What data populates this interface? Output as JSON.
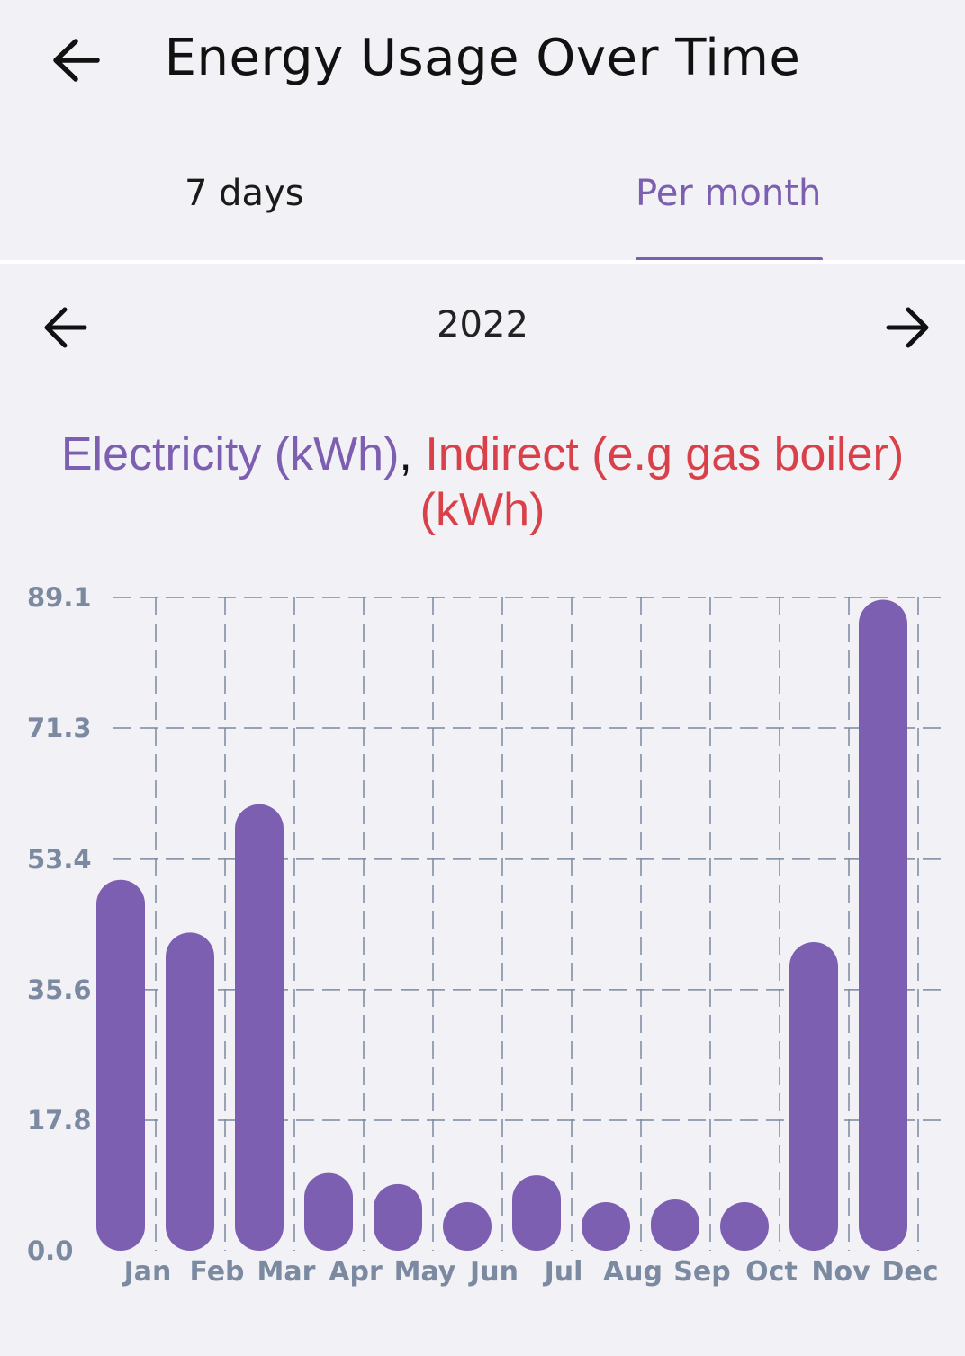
{
  "header": {
    "title": "Energy Usage Over Time",
    "back_icon": "arrow-left-icon"
  },
  "tabs": [
    {
      "label": "7 days",
      "selected": false
    },
    {
      "label": "Per month",
      "selected": true
    }
  ],
  "period": {
    "year": "2022",
    "prev_icon": "arrow-left-icon",
    "next_icon": "arrow-right-icon"
  },
  "legend": {
    "electricity": "Electricity (kWh)",
    "separator": ",",
    "indirect": "Indirect (e.g gas boiler) (kWh)"
  },
  "colors": {
    "accent": "#7d5fb2",
    "electricity": "#7d5fb2",
    "indirect": "#d9414a",
    "axis_text": "#7b8aa0",
    "grid": "#7b8aa0",
    "background": "#f2f1f6"
  },
  "chart_data": {
    "type": "bar",
    "categories": [
      "Jan",
      "Feb",
      "Mar",
      "Apr",
      "May",
      "Jun",
      "Jul",
      "Aug",
      "Sep",
      "Oct",
      "Nov",
      "Dec"
    ],
    "series": [
      {
        "name": "Electricity (kWh)",
        "values": [
          50.6,
          43.4,
          60.9,
          10.6,
          9.1,
          6.4,
          10.3,
          6.4,
          7.0,
          6.4,
          42.1,
          88.8
        ]
      }
    ],
    "yticks": [
      "0.0",
      "17.8",
      "35.6",
      "53.4",
      "71.3",
      "89.1"
    ],
    "ylim": [
      0,
      89.1
    ],
    "grid": true,
    "grid_style": "dashed"
  }
}
